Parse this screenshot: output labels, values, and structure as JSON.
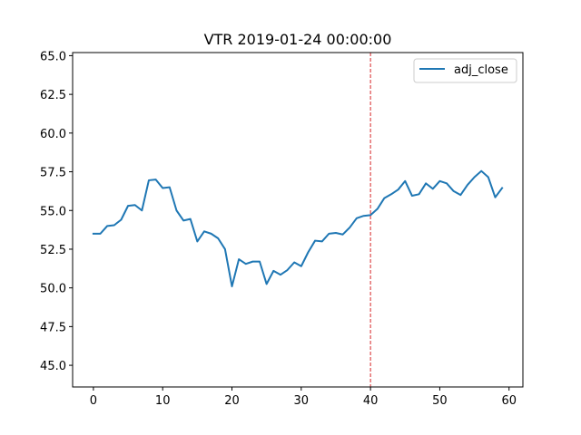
{
  "chart_data": {
    "type": "line",
    "title": "VTR 2019-01-24 00:00:00",
    "xlabel": "",
    "ylabel": "",
    "xlim": [
      -3,
      62
    ],
    "ylim": [
      43.6,
      65.2
    ],
    "xticks": [
      0,
      10,
      20,
      30,
      40,
      50,
      60
    ],
    "yticks": [
      45.0,
      47.5,
      50.0,
      52.5,
      55.0,
      57.5,
      60.0,
      62.5,
      65.0
    ],
    "ytick_labels": [
      "45.0",
      "47.5",
      "50.0",
      "52.5",
      "55.0",
      "57.5",
      "60.0",
      "62.5",
      "65.0"
    ],
    "grid": false,
    "legend_position": "top-right",
    "series": [
      {
        "name": "adj_close",
        "color": "#1f77b4",
        "x": [
          0,
          1,
          2,
          3,
          4,
          5,
          6,
          7,
          8,
          9,
          10,
          11,
          12,
          13,
          14,
          15,
          16,
          17,
          18,
          19,
          20,
          21,
          22,
          23,
          24,
          25,
          26,
          27,
          28,
          29,
          30,
          31,
          32,
          33,
          34,
          35,
          36,
          37,
          38,
          39,
          40,
          41,
          42,
          43,
          44,
          45,
          46,
          47,
          48,
          49,
          50,
          51,
          52,
          53,
          54,
          55,
          56,
          57,
          58,
          59
        ],
        "values": [
          53.5,
          53.5,
          54.0,
          54.05,
          54.4,
          55.3,
          55.35,
          55.0,
          56.95,
          57.0,
          56.45,
          56.5,
          55.0,
          54.35,
          54.45,
          53.0,
          53.65,
          53.5,
          53.2,
          52.5,
          50.1,
          51.85,
          51.55,
          51.7,
          51.7,
          50.25,
          51.1,
          50.85,
          51.15,
          51.65,
          51.4,
          52.3,
          53.05,
          53.0,
          53.5,
          53.55,
          53.45,
          53.9,
          54.5,
          54.65,
          54.7,
          55.1,
          55.8,
          56.05,
          56.35,
          56.9,
          55.95,
          56.05,
          56.75,
          56.4,
          56.9,
          56.75,
          56.25,
          56.0,
          56.65,
          57.15,
          57.55,
          57.15,
          55.85,
          56.45
        ]
      }
    ],
    "vline": {
      "x": 40,
      "color": "#d62728",
      "style": "dashed"
    }
  }
}
